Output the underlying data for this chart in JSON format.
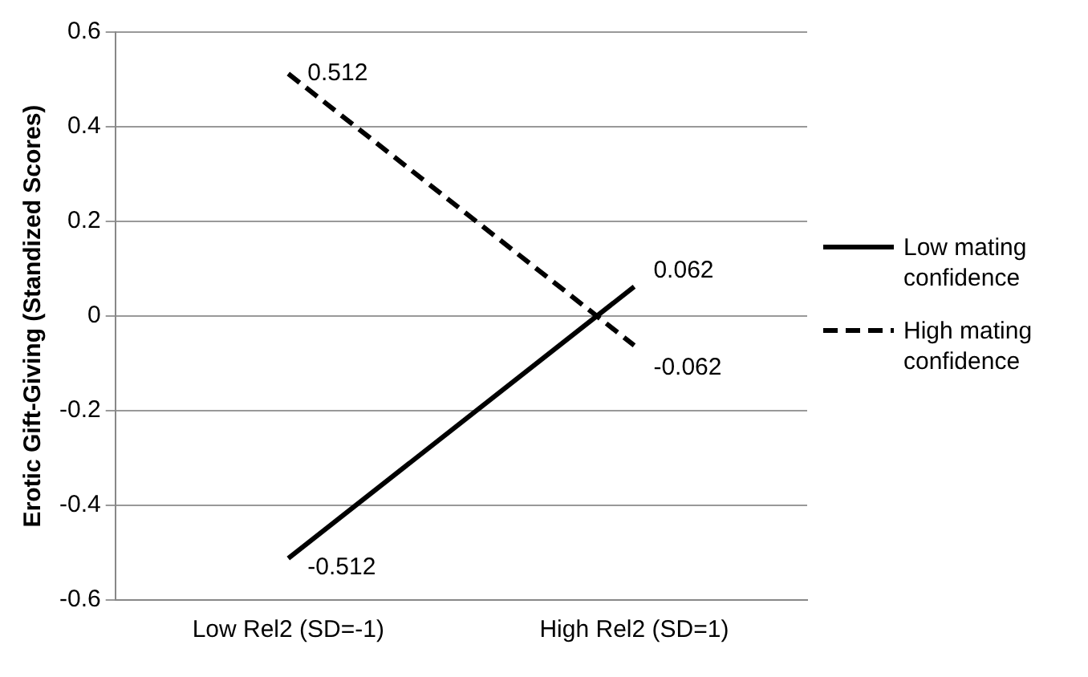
{
  "chart_data": {
    "type": "line",
    "ylabel": "Erotic Gift-Giving (Standized Scores)",
    "categories": [
      "Low Rel2 (SD=-1)",
      "High Rel2 (SD=1)"
    ],
    "series": [
      {
        "name": "Low mating confidence",
        "color": "#000000",
        "values": [
          -0.512,
          0.062
        ],
        "line_style": "solid"
      },
      {
        "name": "High mating confidence",
        "color": "#000000",
        "values": [
          0.512,
          -0.062
        ],
        "line_style": "dashed"
      }
    ],
    "ylim": [
      -0.6,
      0.6
    ],
    "yticks": [
      -0.6,
      -0.4,
      -0.2,
      0,
      0.2,
      0.4,
      0.6
    ],
    "grid": "y",
    "legend": "right",
    "marker": "none",
    "data_labels": true
  }
}
